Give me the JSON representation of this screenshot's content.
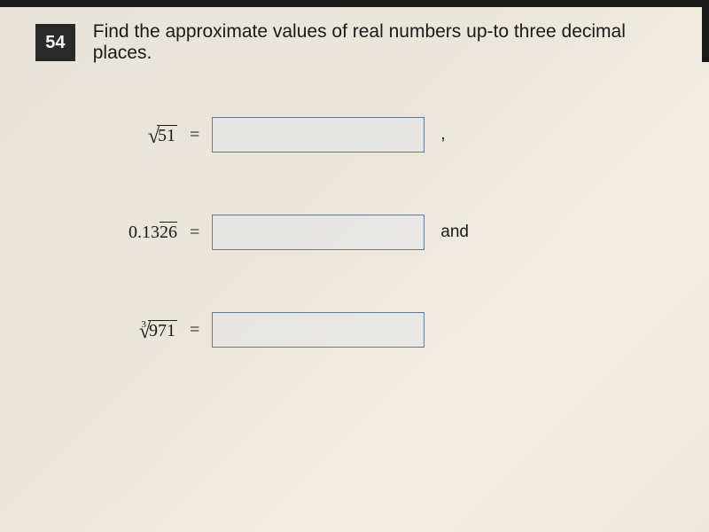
{
  "question": {
    "number": "54",
    "text": "Find the approximate values of real numbers up-to three decimal places."
  },
  "problems": [
    {
      "type": "sqrt",
      "radicand": "51",
      "equals": "=",
      "suffix": ","
    },
    {
      "type": "repeating-decimal",
      "prefix": "0.13",
      "repeating": "26",
      "equals": "=",
      "suffix": "and"
    },
    {
      "type": "nth-root",
      "index": "3",
      "radicand": "971",
      "equals": "="
    }
  ],
  "styling": {
    "question_number_bg": "#2a2a2a",
    "question_number_fg": "#f5f5f5",
    "input_border": "#6a7a8a",
    "input_bg": "rgba(225,230,235,0.5)",
    "page_bg_gradient": [
      "#e8e4db",
      "#ebe6dc",
      "#f2ede2",
      "#ede8dd"
    ],
    "question_fontsize": 21,
    "expression_fontsize": 20,
    "input_width": 240,
    "input_height": 40
  }
}
